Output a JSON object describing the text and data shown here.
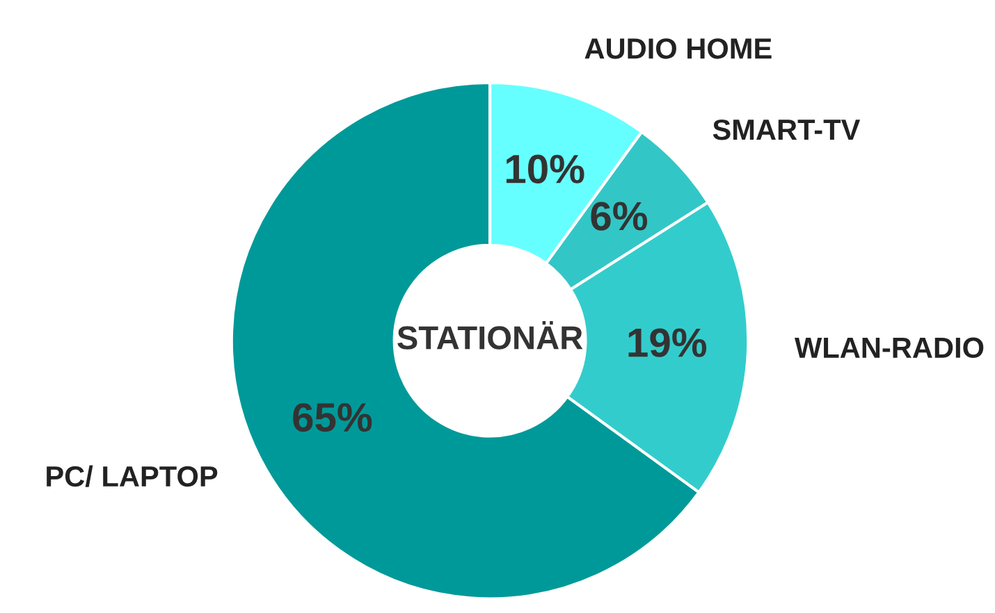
{
  "chart_data": {
    "type": "donut",
    "title": "STATIONÄR",
    "categories": [
      "AUDIO HOME",
      "SMART-TV",
      "WLAN-RADIO",
      "PC/ LAPTOP"
    ],
    "values": [
      10,
      6,
      19,
      65
    ],
    "colors": [
      "#66ffff",
      "#33c6c6",
      "#33cccc",
      "#009999"
    ],
    "value_labels": [
      "10%",
      "6%",
      "19%",
      "65%"
    ],
    "legend": false
  }
}
